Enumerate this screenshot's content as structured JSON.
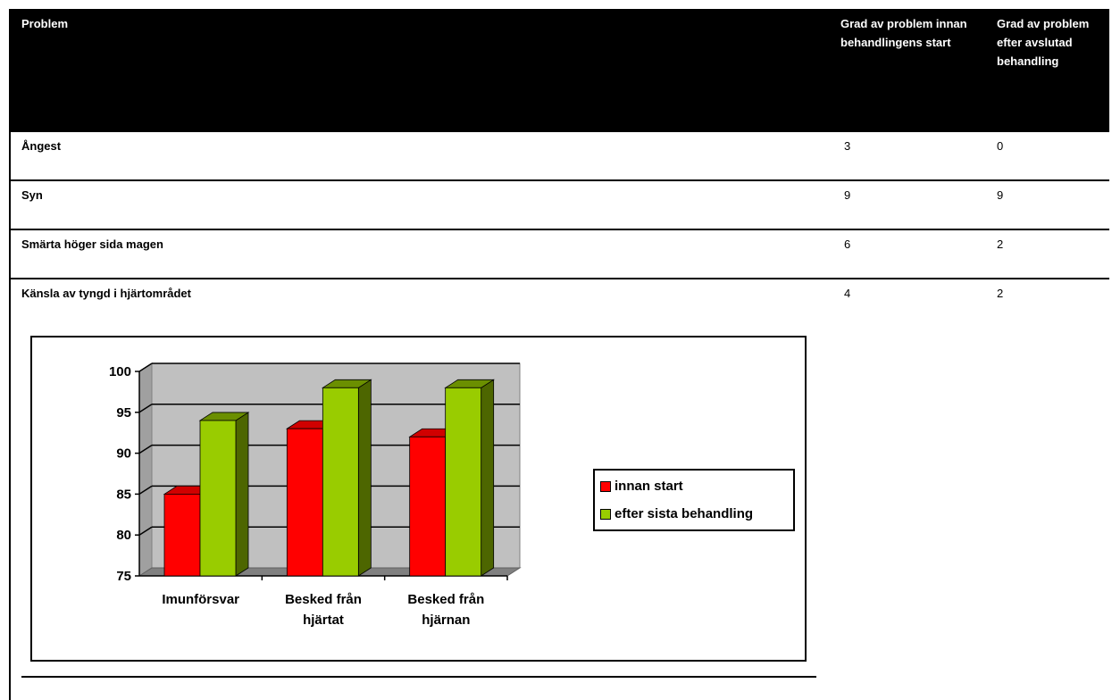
{
  "table": {
    "headers": {
      "problem": "Problem",
      "before": "Grad av problem innan behandlingens start",
      "after": "Grad av problem efter avslutad behandling"
    },
    "rows": [
      {
        "problem": "Ångest",
        "before": "3",
        "after": "0"
      },
      {
        "problem": "Syn",
        "before": "9",
        "after": "9"
      },
      {
        "problem": "Smärta höger sida magen",
        "before": "6",
        "after": "2"
      },
      {
        "problem": "Känsla av tyngd i hjärtområdet",
        "before": "4",
        "after": "2"
      }
    ]
  },
  "chart_data": {
    "type": "bar",
    "categories": [
      "Imunförsvar",
      "Besked från hjärtat",
      "Besked från hjärnan"
    ],
    "series": [
      {
        "name": "innan start",
        "values": [
          85,
          93,
          92
        ],
        "color": "#ff0000"
      },
      {
        "name": "efter sista behandling",
        "values": [
          94,
          98,
          98
        ],
        "color": "#99cc00"
      }
    ],
    "ylim": [
      75,
      100
    ],
    "yticks": [
      "75",
      "80",
      "85",
      "90",
      "95",
      "100"
    ],
    "grid": true,
    "legend": "right",
    "style": "3d"
  }
}
